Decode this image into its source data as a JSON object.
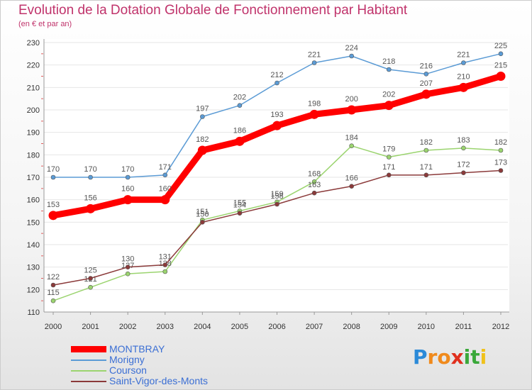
{
  "title": "Evolution de la Dotation Globale de Fonctionnement par Habitant",
  "subtitle": "(en € et par an)",
  "chart_data": {
    "type": "line",
    "title": "Evolution de la Dotation Globale de Fonctionnement par Habitant",
    "subtitle": "(en € et par an)",
    "xlabel": "",
    "ylabel": "",
    "ylim": [
      110,
      230
    ],
    "yticks": [
      110,
      120,
      130,
      140,
      150,
      160,
      170,
      180,
      190,
      200,
      210,
      220,
      230
    ],
    "categories": [
      "2000",
      "2001",
      "2002",
      "2003",
      "2004",
      "2005",
      "2006",
      "2007",
      "2008",
      "2009",
      "2010",
      "2011",
      "2012"
    ],
    "grid": true,
    "legend_position": "bottom-left",
    "series": [
      {
        "name": "Morigny",
        "color": "#5b9bd5",
        "values": [
          170,
          170,
          170,
          171,
          197,
          202,
          212,
          221,
          224,
          218,
          216,
          221,
          225
        ]
      },
      {
        "name": "Courson",
        "color": "#9bd46f",
        "values": [
          115,
          121,
          127,
          128,
          151,
          155,
          159,
          168,
          184,
          179,
          182,
          183,
          182
        ]
      },
      {
        "name": "Saint-Vigor-des-Monts",
        "color": "#8b3a3a",
        "values": [
          122,
          125,
          130,
          131,
          150,
          154,
          158,
          163,
          166,
          171,
          171,
          172,
          173
        ]
      },
      {
        "name": "MONTBRAY",
        "color": "#ff0000",
        "values": [
          153,
          156,
          160,
          160,
          182,
          186,
          193,
          198,
          200,
          202,
          207,
          210,
          215
        ]
      }
    ]
  },
  "legend": [
    {
      "label": "MONTBRAY",
      "color": "#ff0000",
      "labelColor": "#3b6fd4"
    },
    {
      "label": "Morigny",
      "color": "#5b9bd5",
      "labelColor": "#3b6fd4"
    },
    {
      "label": "Courson",
      "color": "#9bd46f",
      "labelColor": "#3b6fd4"
    },
    {
      "label": "Saint-Vigor-des-Monts",
      "color": "#8b3a3a",
      "labelColor": "#3b6fd4"
    }
  ],
  "logo": {
    "letters": [
      "P",
      "r",
      "o",
      "x",
      "i",
      "t",
      "i"
    ],
    "colors": [
      "#2b8ad8",
      "#f08a1c",
      "#f08a1c",
      "#e0301e",
      "#3aa83a",
      "#3aa83a",
      "#f0c21c"
    ]
  }
}
